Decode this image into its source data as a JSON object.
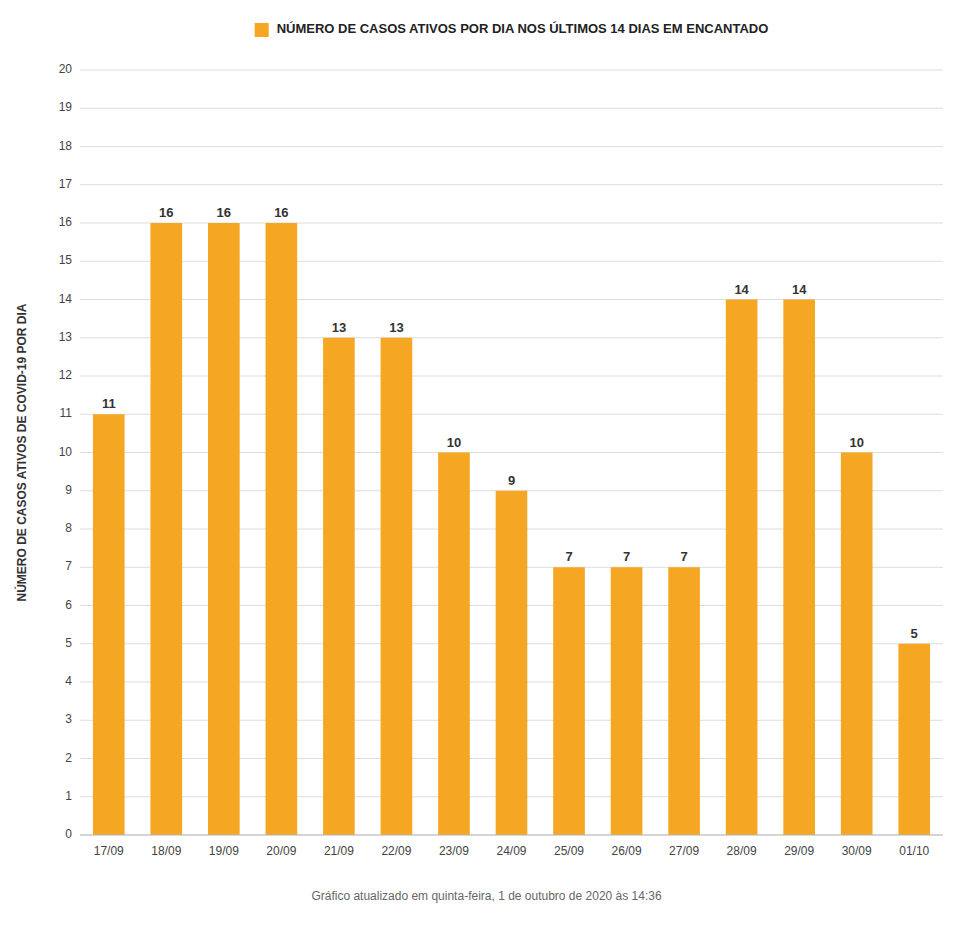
{
  "chart_data": {
    "type": "bar",
    "categories": [
      "17/09",
      "18/09",
      "19/09",
      "20/09",
      "21/09",
      "22/09",
      "23/09",
      "24/09",
      "25/09",
      "26/09",
      "27/09",
      "28/09",
      "29/09",
      "30/09",
      "01/10"
    ],
    "series": [
      {
        "name": "NÚMERO DE CASOS ATIVOS POR DIA NOS ÚLTIMOS 14 DIAS EM ENCANTADO",
        "color": "#F5A623",
        "values": [
          11,
          16,
          16,
          16,
          13,
          13,
          10,
          9,
          7,
          7,
          7,
          14,
          14,
          10,
          5
        ]
      }
    ],
    "ylabel": "NÚMERO DE CASOS ATIVOS DE COVID-19 POR DIA",
    "annotations": [
      "Gráfico atualizado em quinta-feira, 1 de outubro de 2020 às 14:36"
    ],
    "ylim": [
      0,
      20
    ],
    "yticks": [
      0,
      1,
      2,
      3,
      4,
      5,
      6,
      7,
      8,
      9,
      10,
      11,
      12,
      13,
      14,
      15,
      16,
      17,
      18,
      19,
      20
    ],
    "grid": true,
    "legend": "top",
    "data_labels": true
  }
}
